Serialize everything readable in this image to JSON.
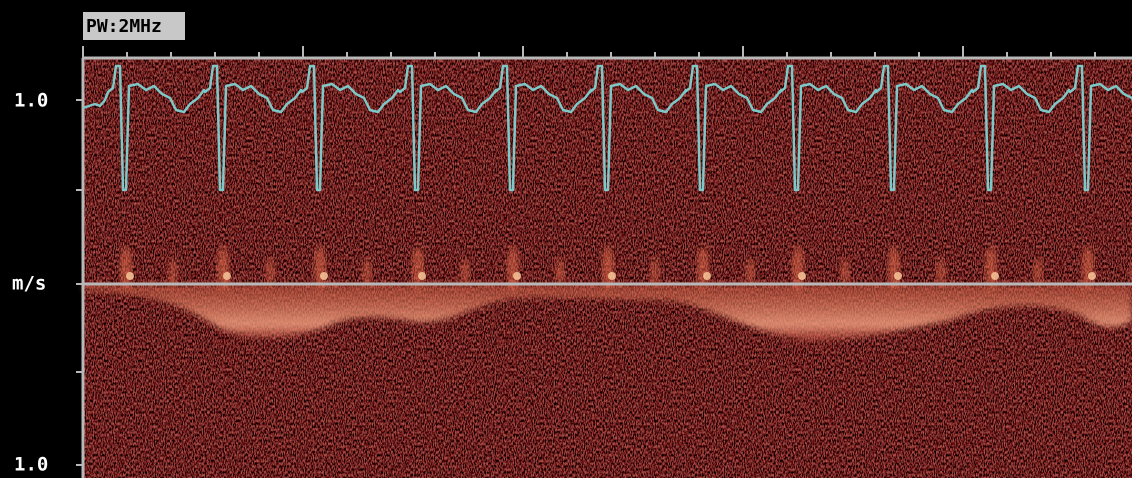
{
  "header": {
    "mode": "PW:2MHz"
  },
  "axis": {
    "top_label": "1.0",
    "unit_label": "m/s",
    "bottom_label": "1.0"
  }
}
